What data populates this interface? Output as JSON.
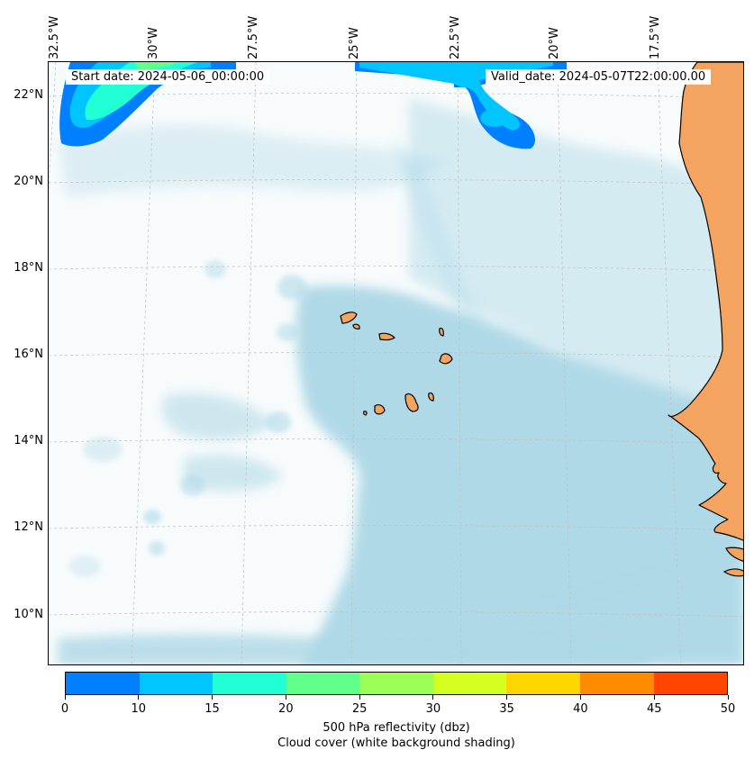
{
  "map": {
    "lon_labels": [
      "32.5°W",
      "30°W",
      "27.5°W",
      "25°W",
      "22.5°W",
      "20°W",
      "17.5°W"
    ],
    "lat_labels": [
      "22°N",
      "20°N",
      "18°N",
      "16°N",
      "14°N",
      "12°N",
      "10°N"
    ],
    "start_date": "Start date: 2024-05-06_00:00:00",
    "valid_date": "Valid_date: 2024-05-07T22:00:00.00",
    "land_color": "#f4a460",
    "cloud_color": "#add8e6",
    "coastline_color": "#000000"
  },
  "colorbar": {
    "ticks": [
      "0",
      "10",
      "15",
      "20",
      "25",
      "30",
      "35",
      "40",
      "45",
      "50"
    ],
    "colors": [
      "#007fff",
      "#00c5ff",
      "#20ffd5",
      "#61ff8c",
      "#9cff55",
      "#d5ff20",
      "#ffd700",
      "#ff8c00",
      "#ff4500"
    ],
    "label": "500 hPa reflectivity (dbz)",
    "sublabel": "Cloud cover (white background shading)"
  }
}
